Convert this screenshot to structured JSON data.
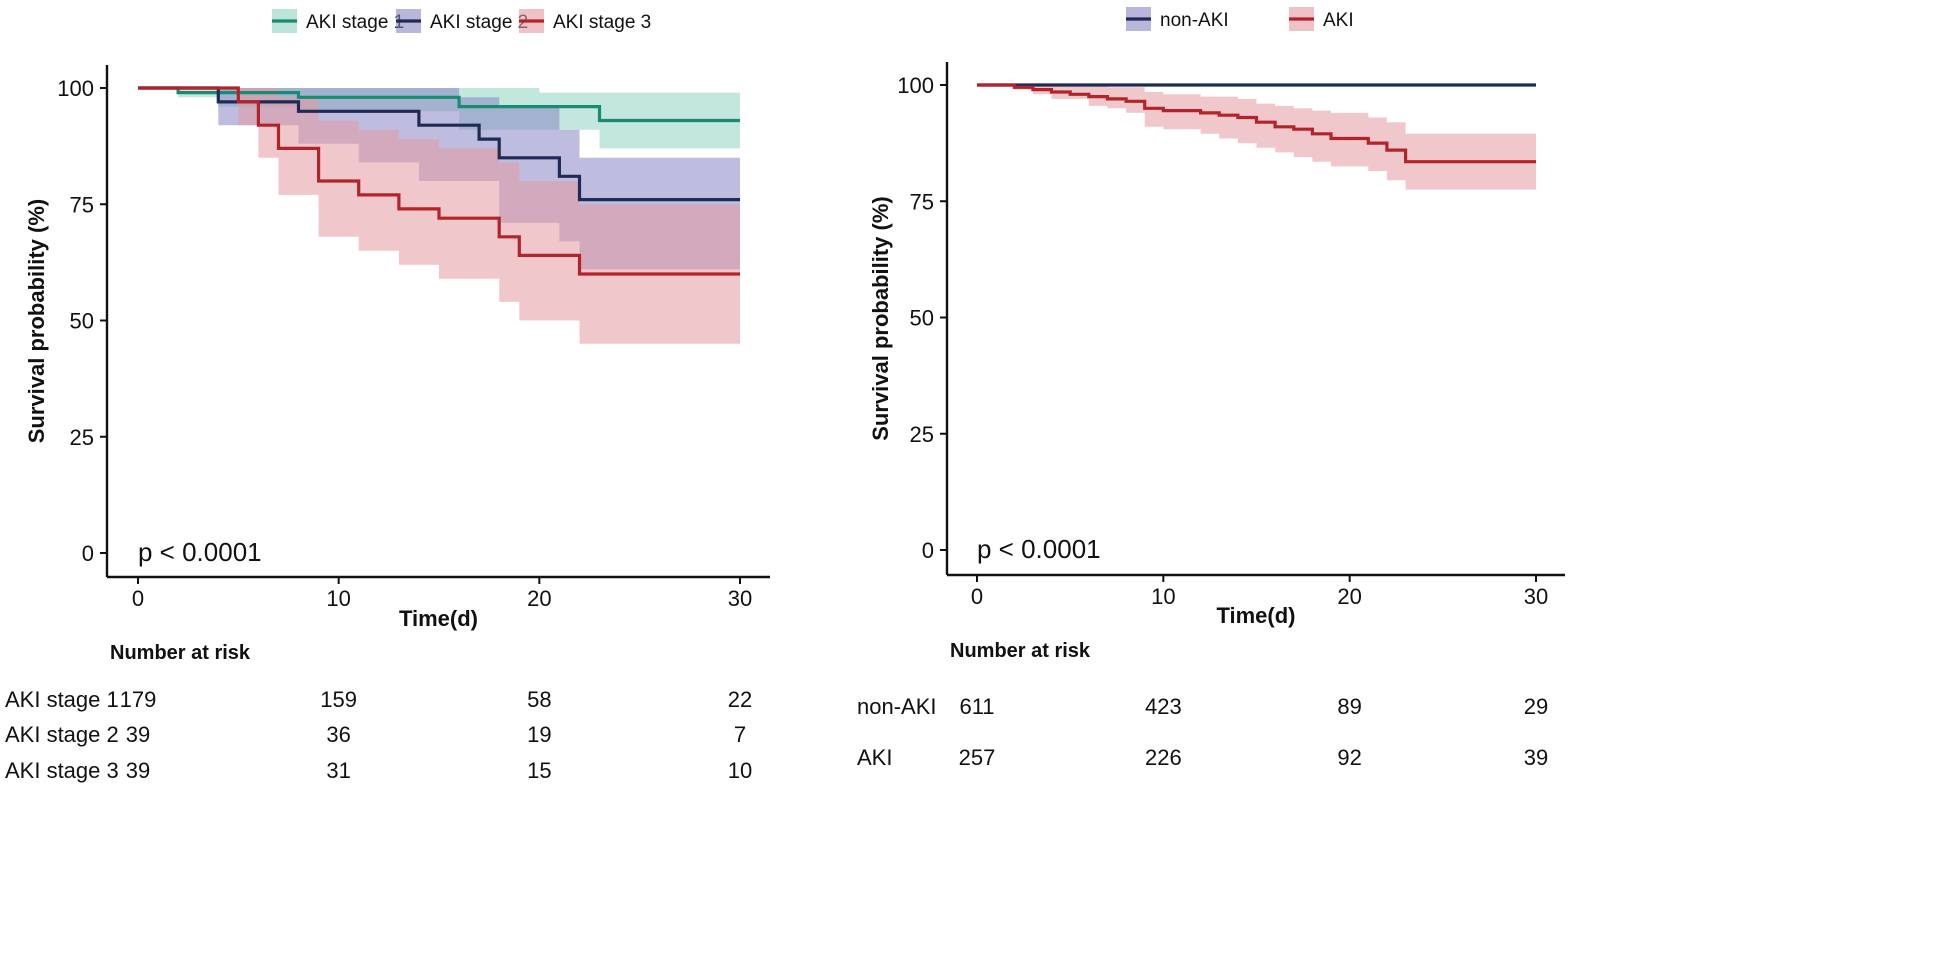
{
  "chart_data": [
    {
      "type": "line",
      "subtype": "kaplan-meier",
      "title": "",
      "xlabel": "Time(d)",
      "ylabel": "Survival probability (%)",
      "xlim": [
        0,
        30
      ],
      "ylim": [
        0,
        100
      ],
      "x_ticks": [
        0,
        10,
        20,
        30
      ],
      "y_ticks": [
        0,
        25,
        50,
        75,
        100
      ],
      "grid": false,
      "legend_position": "top",
      "annotation": "p < 0.0001",
      "series": [
        {
          "name": "AKI stage 1",
          "color": "#1a8a73",
          "fill": "#8fd4bf",
          "steps": [
            [
              0,
              100
            ],
            [
              2,
              99
            ],
            [
              4,
              99
            ],
            [
              8,
              98
            ],
            [
              16,
              96
            ],
            [
              23,
              93
            ],
            [
              30,
              93
            ]
          ],
          "lower": [
            [
              0,
              100
            ],
            [
              2,
              98
            ],
            [
              4,
              96
            ],
            [
              8,
              95
            ],
            [
              16,
              91
            ],
            [
              23,
              87
            ],
            [
              30,
              87
            ]
          ],
          "upper": [
            [
              0,
              100
            ],
            [
              2,
              100
            ],
            [
              4,
              100
            ],
            [
              8,
              100
            ],
            [
              16,
              100
            ],
            [
              20,
              99
            ],
            [
              30,
              99
            ]
          ]
        },
        {
          "name": "AKI stage 2",
          "color": "#1f2a55",
          "fill": "#8a86c4",
          "steps": [
            [
              0,
              100
            ],
            [
              4,
              97
            ],
            [
              8,
              95
            ],
            [
              14,
              92
            ],
            [
              17,
              89
            ],
            [
              18,
              85
            ],
            [
              21,
              81
            ],
            [
              22,
              76
            ],
            [
              30,
              76
            ]
          ],
          "lower": [
            [
              0,
              100
            ],
            [
              4,
              92
            ],
            [
              8,
              88
            ],
            [
              11,
              84
            ],
            [
              14,
              80
            ],
            [
              18,
              71
            ],
            [
              21,
              67
            ],
            [
              22,
              61
            ],
            [
              30,
              61
            ]
          ],
          "upper": [
            [
              0,
              100
            ],
            [
              4,
              100
            ],
            [
              8,
              100
            ],
            [
              16,
              98
            ],
            [
              18,
              96
            ],
            [
              21,
              91
            ],
            [
              22,
              85
            ],
            [
              30,
              85
            ]
          ]
        },
        {
          "name": "AKI stage 3",
          "color": "#b2242a",
          "fill": "#e39aa0",
          "steps": [
            [
              0,
              100
            ],
            [
              5,
              97
            ],
            [
              6,
              92
            ],
            [
              7,
              87
            ],
            [
              9,
              80
            ],
            [
              11,
              77
            ],
            [
              13,
              74
            ],
            [
              15,
              72
            ],
            [
              18,
              68
            ],
            [
              19,
              64
            ],
            [
              22,
              60
            ],
            [
              30,
              60
            ]
          ],
          "lower": [
            [
              0,
              100
            ],
            [
              5,
              92
            ],
            [
              6,
              85
            ],
            [
              7,
              77
            ],
            [
              9,
              68
            ],
            [
              11,
              65
            ],
            [
              13,
              62
            ],
            [
              15,
              59
            ],
            [
              18,
              54
            ],
            [
              19,
              50
            ],
            [
              22,
              45
            ],
            [
              30,
              45
            ]
          ],
          "upper": [
            [
              0,
              100
            ],
            [
              5,
              100
            ],
            [
              7,
              98
            ],
            [
              9,
              93
            ],
            [
              11,
              91
            ],
            [
              13,
              89
            ],
            [
              15,
              87
            ],
            [
              18,
              84
            ],
            [
              19,
              80
            ],
            [
              22,
              75
            ],
            [
              30,
              75
            ]
          ]
        }
      ],
      "risk_table": {
        "title": "Number at risk",
        "times": [
          0,
          10,
          20,
          30
        ],
        "rows": [
          {
            "label": "AKI stage 1",
            "values": [
              "179",
              "159",
              "58",
              "22"
            ]
          },
          {
            "label": "AKI stage 2",
            "values": [
              "39",
              "36",
              "19",
              "7"
            ]
          },
          {
            "label": "AKI stage 3",
            "values": [
              "39",
              "31",
              "15",
              "10"
            ]
          }
        ]
      }
    },
    {
      "type": "line",
      "subtype": "kaplan-meier",
      "title": "",
      "xlabel": "Time(d)",
      "ylabel": "Survival probability (%)",
      "xlim": [
        0,
        30
      ],
      "ylim": [
        0,
        100
      ],
      "x_ticks": [
        0,
        10,
        20,
        30
      ],
      "y_ticks": [
        0,
        25,
        50,
        75,
        100
      ],
      "grid": false,
      "legend_position": "top",
      "annotation": "p < 0.0001",
      "series": [
        {
          "name": "non-AKI",
          "color": "#1f2a55",
          "fill": "#8a86c4",
          "steps": [
            [
              0,
              100
            ],
            [
              30,
              100
            ]
          ],
          "lower": [
            [
              0,
              100
            ],
            [
              30,
              100
            ]
          ],
          "upper": [
            [
              0,
              100
            ],
            [
              30,
              100
            ]
          ]
        },
        {
          "name": "AKI",
          "color": "#b2242a",
          "fill": "#e39aa0",
          "steps": [
            [
              0,
              100
            ],
            [
              2,
              99.5
            ],
            [
              3,
              99
            ],
            [
              4,
              98.5
            ],
            [
              5,
              98
            ],
            [
              6,
              97.5
            ],
            [
              7,
              97
            ],
            [
              8,
              96.5
            ],
            [
              9,
              95
            ],
            [
              10,
              94.5
            ],
            [
              12,
              94
            ],
            [
              13,
              93.5
            ],
            [
              14,
              93
            ],
            [
              15,
              92
            ],
            [
              16,
              91
            ],
            [
              17,
              90.5
            ],
            [
              18,
              89.5
            ],
            [
              19,
              88.5
            ],
            [
              21,
              87.5
            ],
            [
              22,
              86
            ],
            [
              23,
              83.5
            ],
            [
              30,
              83.5
            ]
          ],
          "lower": [
            [
              0,
              100
            ],
            [
              2,
              99
            ],
            [
              3,
              98
            ],
            [
              4,
              97
            ],
            [
              6,
              95.5
            ],
            [
              7,
              95
            ],
            [
              8,
              94
            ],
            [
              9,
              91
            ],
            [
              10,
              90.5
            ],
            [
              12,
              89.5
            ],
            [
              13,
              88.5
            ],
            [
              14,
              87.5
            ],
            [
              15,
              86.5
            ],
            [
              16,
              85.5
            ],
            [
              17,
              84.5
            ],
            [
              18,
              83.5
            ],
            [
              19,
              82.5
            ],
            [
              21,
              81.5
            ],
            [
              22,
              79.5
            ],
            [
              23,
              77.5
            ],
            [
              30,
              77.5
            ]
          ],
          "upper": [
            [
              0,
              100
            ],
            [
              6,
              100
            ],
            [
              7,
              99.5
            ],
            [
              9,
              98.5
            ],
            [
              10,
              98
            ],
            [
              12,
              97.5
            ],
            [
              14,
              97
            ],
            [
              15,
              96
            ],
            [
              16,
              95.5
            ],
            [
              17,
              95
            ],
            [
              18,
              94.5
            ],
            [
              19,
              94
            ],
            [
              21,
              93
            ],
            [
              22,
              92
            ],
            [
              23,
              89.5
            ],
            [
              30,
              89.5
            ]
          ]
        }
      ],
      "risk_table": {
        "title": "Number at risk",
        "times": [
          0,
          10,
          20,
          30
        ],
        "rows": [
          {
            "label": "non-AKI",
            "values": [
              "611",
              "423",
              "89",
              "29"
            ]
          },
          {
            "label": "AKI",
            "values": [
              "257",
              "226",
              "92",
              "39"
            ]
          }
        ]
      }
    }
  ]
}
